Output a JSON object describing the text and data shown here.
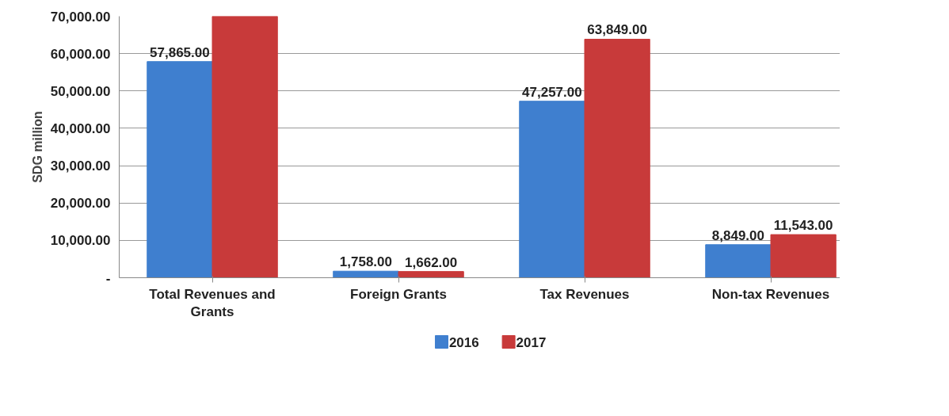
{
  "chart_data": {
    "type": "bar",
    "ylabel": "SDG million",
    "categories": [
      "Total Revenues and\nGrants",
      "Foreign Grants",
      "Tax Revenues",
      "Non-tax Revenues"
    ],
    "series": [
      {
        "name": "2016",
        "color": "#3f7fcf",
        "values": [
          57865,
          1758,
          47257,
          8849
        ],
        "value_labels": [
          "57,865.00",
          "1,758.00",
          "47,257.00",
          "8,849.00"
        ]
      },
      {
        "name": "2017",
        "color": "#c83a3a",
        "values": [
          70000,
          1662,
          63849,
          11543
        ],
        "value_labels": [
          null,
          "1,662.00",
          "63,849.00",
          "11,543.00"
        ]
      }
    ],
    "ylim": [
      0,
      70000
    ],
    "yticks": [
      {
        "value": 0,
        "label": "-"
      },
      {
        "value": 10000,
        "label": "10,000.00"
      },
      {
        "value": 20000,
        "label": "20,000.00"
      },
      {
        "value": 30000,
        "label": "30,000.00"
      },
      {
        "value": 40000,
        "label": "40,000.00"
      },
      {
        "value": 50000,
        "label": "50,000.00"
      },
      {
        "value": 60000,
        "label": "60,000.00"
      },
      {
        "value": 70000,
        "label": "70,000.00"
      }
    ],
    "grid": "y",
    "legend": "bottom"
  }
}
